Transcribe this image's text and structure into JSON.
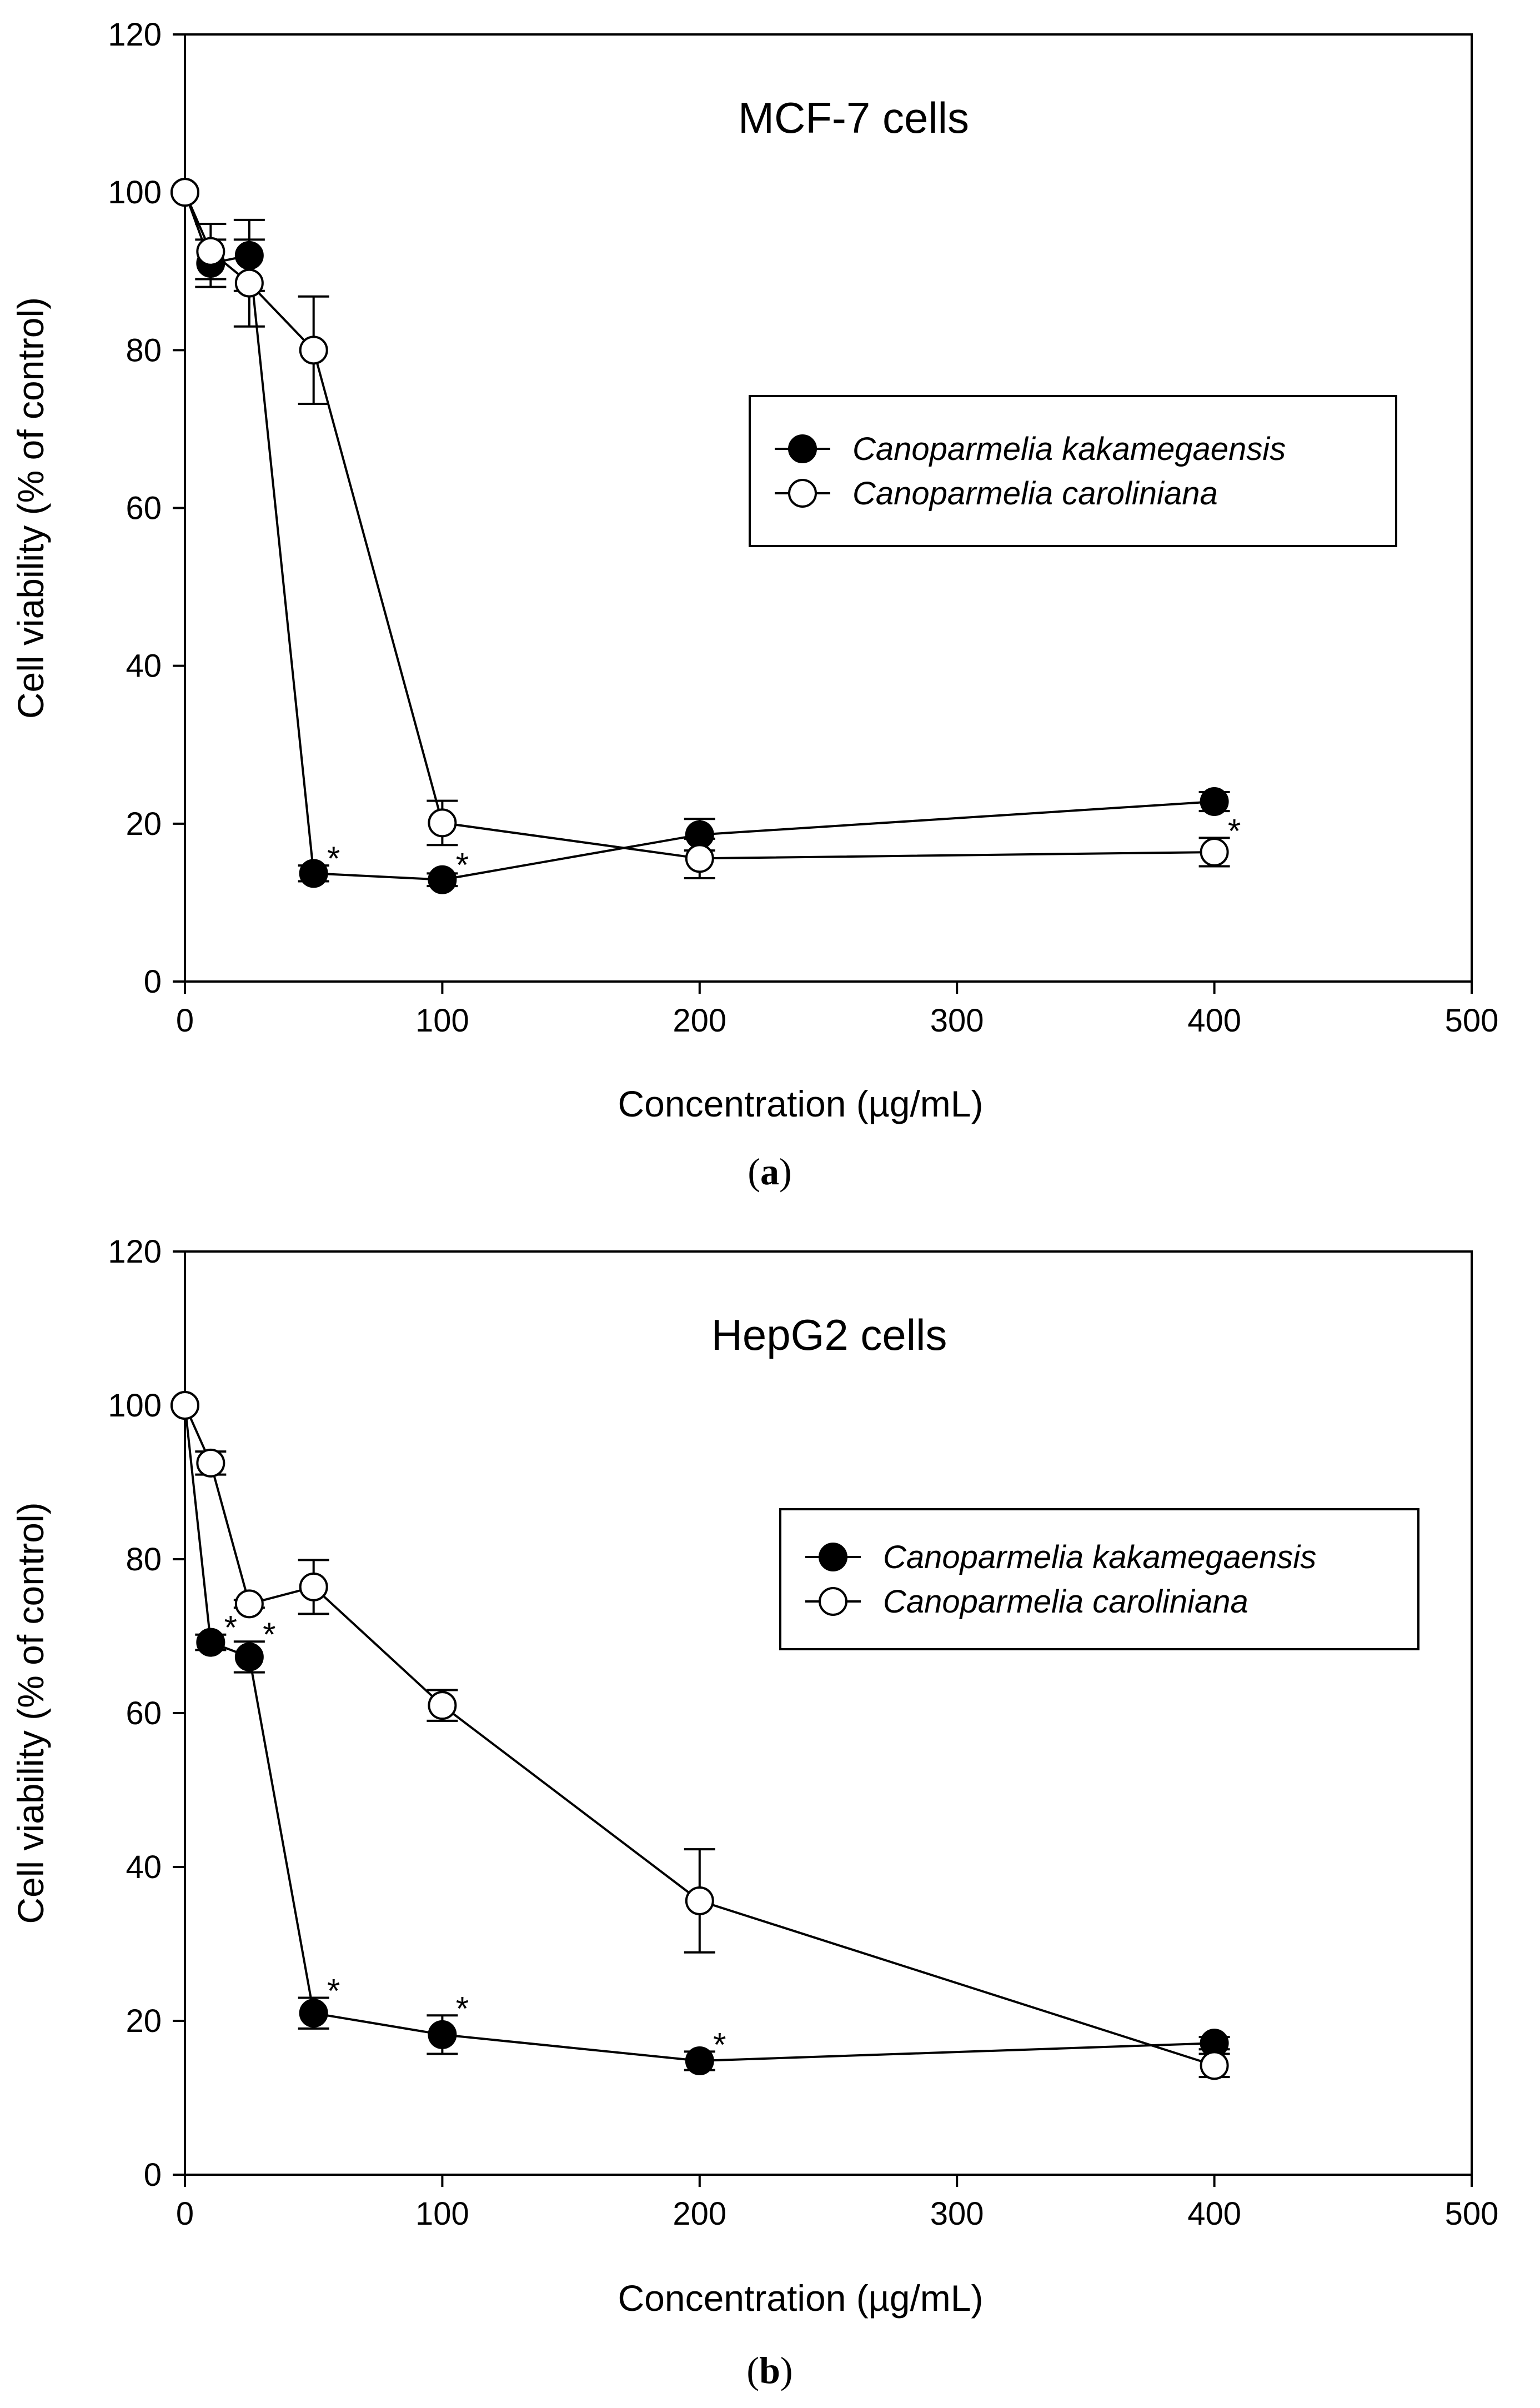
{
  "chart_data": [
    {
      "type": "line",
      "panel_label_open": "(",
      "panel_label_letter": "a",
      "panel_label_close": ")",
      "title": "MCF-7 cells",
      "xlabel": "Concentration (µg/mL)",
      "ylabel": "Cell viability (% of control)",
      "xlim": [
        0,
        500
      ],
      "ylim": [
        0,
        120
      ],
      "xticks": [
        0,
        100,
        200,
        300,
        400,
        500
      ],
      "yticks": [
        0,
        20,
        40,
        60,
        80,
        100,
        120
      ],
      "legend_position": "right-middle",
      "series": [
        {
          "name": "Canoparmelia kakamegaensis",
          "marker": "filled-circle",
          "x": [
            0,
            10,
            25,
            50,
            100,
            200,
            400
          ],
          "y": [
            100,
            91,
            92,
            13.7,
            12.9,
            18.6,
            22.8
          ],
          "err": [
            0,
            3,
            4.5,
            1,
            0.8,
            2,
            1.2
          ],
          "sig": [
            false,
            false,
            false,
            true,
            true,
            false,
            false
          ]
        },
        {
          "name": "Canoparmelia caroliniana",
          "marker": "open-circle",
          "x": [
            0,
            10,
            25,
            50,
            100,
            200,
            400
          ],
          "y": [
            100,
            92.5,
            88.5,
            80,
            20.1,
            15.6,
            16.4
          ],
          "err": [
            0,
            3.5,
            5.5,
            6.8,
            2.8,
            2.5,
            1.8
          ],
          "sig": [
            false,
            false,
            false,
            false,
            false,
            false,
            true
          ]
        }
      ],
      "significance_marker": "*"
    },
    {
      "type": "line",
      "panel_label_open": "(",
      "panel_label_letter": "b",
      "panel_label_close": ")",
      "title": "HepG2 cells",
      "xlabel": "Concentration (µg/mL)",
      "ylabel": "Cell viability (% of control)",
      "xlim": [
        0,
        500
      ],
      "ylim": [
        0,
        120
      ],
      "xticks": [
        0,
        100,
        200,
        300,
        400,
        500
      ],
      "yticks": [
        0,
        20,
        40,
        60,
        80,
        100,
        120
      ],
      "legend_position": "top-right",
      "series": [
        {
          "name": "Canoparmelia kakamegaensis",
          "marker": "filled-circle",
          "x": [
            0,
            10,
            25,
            50,
            100,
            200,
            400
          ],
          "y": [
            100,
            69.2,
            67.3,
            21,
            18.2,
            14.8,
            17.1
          ],
          "err": [
            0,
            1,
            2,
            2,
            2.5,
            1.2,
            0.8
          ],
          "sig": [
            false,
            true,
            true,
            true,
            true,
            true,
            false
          ]
        },
        {
          "name": "Canoparmelia caroliniana",
          "marker": "open-circle",
          "x": [
            0,
            10,
            25,
            50,
            100,
            200,
            400
          ],
          "y": [
            100,
            92.5,
            74.2,
            76.4,
            61,
            35.6,
            14.2
          ],
          "err": [
            0,
            1.5,
            0.5,
            3.5,
            2,
            6.7,
            1.5
          ],
          "sig": [
            false,
            false,
            false,
            false,
            false,
            false,
            false
          ]
        }
      ],
      "significance_marker": "*"
    }
  ]
}
